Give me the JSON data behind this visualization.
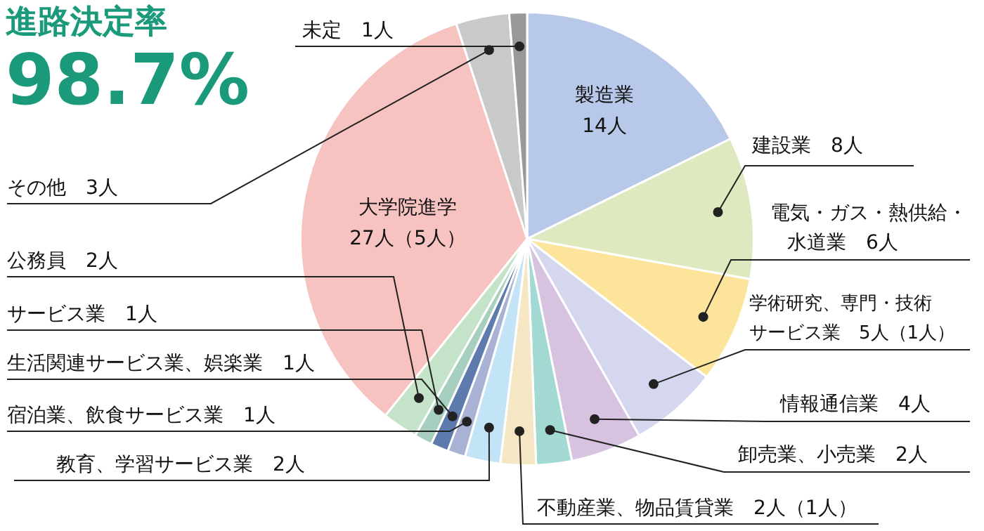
{
  "chart_data": {
    "type": "pie",
    "title": "進路決定率",
    "subtitle": "98.7%",
    "categories": [
      "製造業",
      "建設業",
      "電気・ガス・熱供給・水道業",
      "学術研究、専門・技術サービス業",
      "情報通信業",
      "卸売業、小売業",
      "不動産業、物品賃貸業",
      "教育、学習サービス業",
      "宿泊業、飲食サービス業",
      "生活関連サービス業、娯楽業",
      "サービス業",
      "公務員",
      "大学院進学",
      "その他",
      "未定"
    ],
    "values": [
      14,
      8,
      6,
      5,
      4,
      2,
      2,
      2,
      1,
      1,
      1,
      2,
      27,
      3,
      1
    ],
    "value_labels": [
      "14人",
      "8人",
      "6人",
      "5人（1人）",
      "4人",
      "2人",
      "2人（1人）",
      "2人",
      "1人",
      "1人",
      "1人",
      "2人",
      "27人（5人）",
      "3人",
      "1人"
    ],
    "colors": [
      "#b7c8e8",
      "#dfe9bf",
      "#fde49b",
      "#d5d7ee",
      "#d7c2e0",
      "#a3d9d3",
      "#f5e6c4",
      "#c3e4f6",
      "#a9b1d4",
      "#5d7bad",
      "#a7cfc0",
      "#c5e3c8",
      "#f6c3c1",
      "#c9c9c9",
      "#999999"
    ]
  }
}
